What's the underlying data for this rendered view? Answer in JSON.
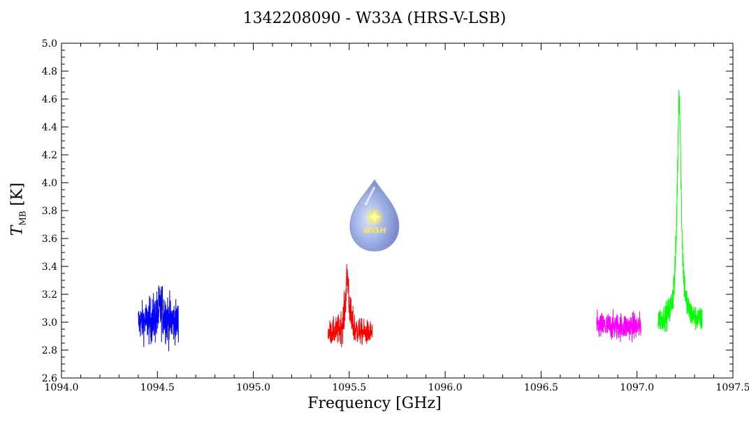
{
  "chart_data": {
    "type": "line",
    "title": "1342208090 - W33A (HRS-V-LSB)",
    "xlabel": "Frequency [GHz]",
    "ylabel_main": "T",
    "ylabel_sub": "MB",
    "ylabel_unit": " [K]",
    "xlim": [
      1094.0,
      1097.5
    ],
    "ylim": [
      2.6,
      5.0
    ],
    "x_ticks": [
      1094.0,
      1094.5,
      1095.0,
      1095.5,
      1096.0,
      1096.5,
      1097.0,
      1097.5
    ],
    "x_tick_labels": [
      "1094.0",
      "1094.5",
      "1095.0",
      "1095.5",
      "1096.0",
      "1096.5",
      "1097.0",
      "1097.5"
    ],
    "y_ticks": [
      2.6,
      2.8,
      3.0,
      3.2,
      3.4,
      3.6,
      3.8,
      4.0,
      4.2,
      4.4,
      4.6,
      4.8,
      5.0
    ],
    "y_tick_labels": [
      "2.6",
      "2.8",
      "3.0",
      "3.2",
      "3.4",
      "3.6",
      "3.8",
      "4.0",
      "4.2",
      "4.4",
      "4.6",
      "4.8",
      "5.0"
    ],
    "grid": false,
    "series": [
      {
        "color": "#0000ff",
        "x_range": [
          1094.4,
          1094.61
        ],
        "baseline": 3.0,
        "noise": 0.11,
        "peaks": [
          {
            "x": 1094.52,
            "height": 0.1,
            "width": 0.02
          }
        ],
        "min": 2.68,
        "max": 3.49
      },
      {
        "color": "#ff0000",
        "x_range": [
          1095.39,
          1095.62
        ],
        "baseline": 2.92,
        "noise": 0.08,
        "peaks": [
          {
            "x": 1095.49,
            "height": 0.4,
            "width": 0.012
          }
        ],
        "min": 2.68,
        "max": 3.58
      },
      {
        "color": "#ff00ff",
        "x_range": [
          1096.79,
          1097.02
        ],
        "baseline": 2.97,
        "noise": 0.09,
        "peaks": [],
        "min": 2.73,
        "max": 3.33
      },
      {
        "color": "#00ff00",
        "x_range": [
          1097.11,
          1097.34
        ],
        "baseline": 3.0,
        "noise": 0.08,
        "peaks": [
          {
            "x": 1097.22,
            "height": 1.65,
            "width": 0.012
          }
        ],
        "min": 2.72,
        "max": 4.91
      }
    ]
  },
  "logo_text": "WISH"
}
